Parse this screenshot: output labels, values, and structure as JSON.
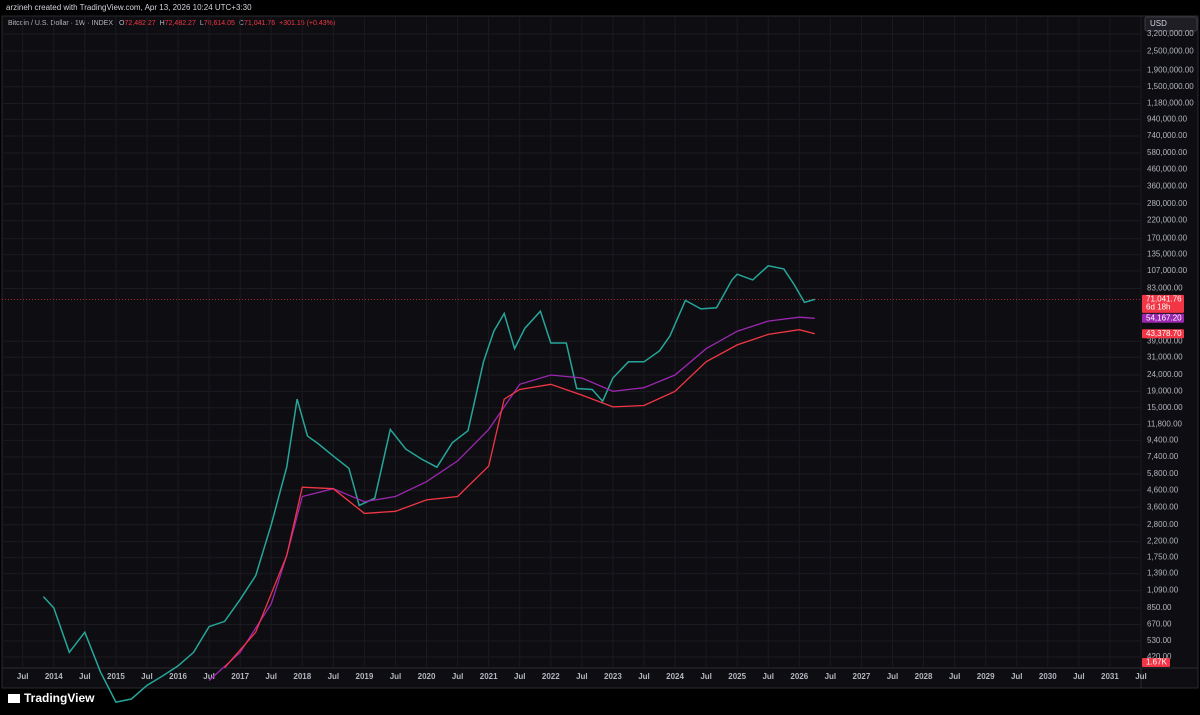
{
  "credit": "arzineh created with TradingView.com, Apr 13, 2026 10:24 UTC+3:30",
  "brand": "TradingView",
  "chart_data": {
    "type": "line",
    "title": "Bitcoin / U.S. Dollar · 1W · INDEX",
    "ohlc": [
      {
        "key": "O",
        "text": "72,482.27"
      },
      {
        "key": "H",
        "text": "72,482.27"
      },
      {
        "key": "L",
        "text": "70,614.05"
      },
      {
        "key": "C",
        "text": "71,041.76"
      }
    ],
    "change": "+301.15 (+0.43%)",
    "currency": "USD",
    "countdown": "6d 18h",
    "volume_label": "1.67K",
    "log_scale": true,
    "grid": true,
    "xlim": [
      "2013-03",
      "2031-07"
    ],
    "ylim": [
      359,
      4140000
    ],
    "xticks": [
      {
        "value": "2013-07",
        "label": "Jul"
      },
      {
        "value": "2014-01",
        "label": "2014"
      },
      {
        "value": "2014-07",
        "label": "Jul"
      },
      {
        "value": "2015-01",
        "label": "2015"
      },
      {
        "value": "2015-07",
        "label": "Jul"
      },
      {
        "value": "2016-01",
        "label": "2016"
      },
      {
        "value": "2016-07",
        "label": "Jul"
      },
      {
        "value": "2017-01",
        "label": "2017"
      },
      {
        "value": "2017-07",
        "label": "Jul"
      },
      {
        "value": "2018-01",
        "label": "2018"
      },
      {
        "value": "2018-07",
        "label": "Jul"
      },
      {
        "value": "2019-01",
        "label": "2019"
      },
      {
        "value": "2019-07",
        "label": "Jul"
      },
      {
        "value": "2020-01",
        "label": "2020"
      },
      {
        "value": "2020-07",
        "label": "Jul"
      },
      {
        "value": "2021-01",
        "label": "2021"
      },
      {
        "value": "2021-07",
        "label": "Jul"
      },
      {
        "value": "2022-01",
        "label": "2022"
      },
      {
        "value": "2022-07",
        "label": "Jul"
      },
      {
        "value": "2023-01",
        "label": "2023"
      },
      {
        "value": "2023-07",
        "label": "Jul"
      },
      {
        "value": "2024-01",
        "label": "2024"
      },
      {
        "value": "2024-07",
        "label": "Jul"
      },
      {
        "value": "2025-01",
        "label": "2025"
      },
      {
        "value": "2025-07",
        "label": "Jul"
      },
      {
        "value": "2026-01",
        "label": "2026"
      },
      {
        "value": "2026-07",
        "label": "Jul"
      },
      {
        "value": "2027-01",
        "label": "2027"
      },
      {
        "value": "2027-07",
        "label": "Jul"
      },
      {
        "value": "2028-01",
        "label": "2028"
      },
      {
        "value": "2028-07",
        "label": "Jul"
      },
      {
        "value": "2029-01",
        "label": "2029"
      },
      {
        "value": "2029-07",
        "label": "Jul"
      },
      {
        "value": "2030-01",
        "label": "2030"
      },
      {
        "value": "2030-07",
        "label": "Jul"
      },
      {
        "value": "2031-01",
        "label": "2031"
      },
      {
        "value": "2031-07",
        "label": "Jul"
      }
    ],
    "yticks": [
      {
        "value": 3200000,
        "label": "3,200,000.00"
      },
      {
        "value": 2500000,
        "label": "2,500,000.00"
      },
      {
        "value": 1900000,
        "label": "1,900,000.00"
      },
      {
        "value": 1500000,
        "label": "1,500,000.00"
      },
      {
        "value": 1180000,
        "label": "1,180,000.00"
      },
      {
        "value": 940000,
        "label": "940,000.00"
      },
      {
        "value": 740000,
        "label": "740,000.00"
      },
      {
        "value": 580000,
        "label": "580,000.00"
      },
      {
        "value": 460000,
        "label": "460,000.00"
      },
      {
        "value": 360000,
        "label": "360,000.00"
      },
      {
        "value": 280000,
        "label": "280,000.00"
      },
      {
        "value": 220000,
        "label": "220,000.00"
      },
      {
        "value": 170000,
        "label": "170,000.00"
      },
      {
        "value": 135000,
        "label": "135,000.00"
      },
      {
        "value": 107000,
        "label": "107,000.00"
      },
      {
        "value": 83000,
        "label": "83,000.00"
      },
      {
        "value": 39000,
        "label": "39,000.00"
      },
      {
        "value": 31000,
        "label": "31,000.00"
      },
      {
        "value": 24000,
        "label": "24,000.00"
      },
      {
        "value": 19000,
        "label": "19,000.00"
      },
      {
        "value": 15000,
        "label": "15,000.00"
      },
      {
        "value": 11800,
        "label": "11,800.00"
      },
      {
        "value": 9400,
        "label": "9,400.00"
      },
      {
        "value": 7400,
        "label": "7,400.00"
      },
      {
        "value": 5800,
        "label": "5,800.00"
      },
      {
        "value": 4600,
        "label": "4,600.00"
      },
      {
        "value": 3600,
        "label": "3,600.00"
      },
      {
        "value": 2800,
        "label": "2,800.00"
      },
      {
        "value": 2200,
        "label": "2,200.00"
      },
      {
        "value": 1750,
        "label": "1,750.00"
      },
      {
        "value": 1390,
        "label": "1,390.00"
      },
      {
        "value": 1090,
        "label": "1,090.00"
      },
      {
        "value": 850,
        "label": "850.00"
      },
      {
        "value": 670,
        "label": "670.00"
      },
      {
        "value": 530,
        "label": "530.00"
      },
      {
        "value": 420,
        "label": "420.00"
      }
    ],
    "series": [
      {
        "color": "#26a69a",
        "label_color": "#f23645",
        "last_label": "71,041.76",
        "price_line": true,
        "x": [
          "2013-11",
          "2014-01",
          "2014-04",
          "2014-07",
          "2014-10",
          "2015-01",
          "2015-04",
          "2015-07",
          "2015-10",
          "2016-01",
          "2016-04",
          "2016-07",
          "2016-10",
          "2017-01",
          "2017-04",
          "2017-07",
          "2017-10",
          "2017-12",
          "2018-02",
          "2018-04",
          "2018-07",
          "2018-10",
          "2018-12",
          "2019-03",
          "2019-06",
          "2019-09",
          "2019-12",
          "2020-03",
          "2020-06",
          "2020-09",
          "2020-12",
          "2021-02",
          "2021-04",
          "2021-06",
          "2021-08",
          "2021-11",
          "2022-01",
          "2022-04",
          "2022-06",
          "2022-09",
          "2022-11",
          "2023-01",
          "2023-04",
          "2023-07",
          "2023-10",
          "2023-12",
          "2024-03",
          "2024-06",
          "2024-09",
          "2024-12",
          "2025-01",
          "2025-04",
          "2025-07",
          "2025-10",
          "2025-12",
          "2026-02",
          "2026-04"
        ],
        "values": [
          1000,
          850,
          450,
          600,
          340,
          220,
          230,
          280,
          320,
          370,
          450,
          650,
          700,
          960,
          1350,
          2800,
          6400,
          17000,
          10000,
          9000,
          7500,
          6300,
          3700,
          4100,
          11000,
          8300,
          7200,
          6400,
          9100,
          10800,
          29000,
          45000,
          58000,
          35000,
          47000,
          60000,
          38000,
          38000,
          19800,
          19500,
          16500,
          23000,
          29000,
          29000,
          34000,
          42000,
          70000,
          62000,
          63000,
          94000,
          102000,
          94000,
          115000,
          110000,
          88000,
          68000,
          71041.76
        ]
      },
      {
        "color": "#9c27b0",
        "label_color": "#9c27b0",
        "last_label": "54,167.20",
        "x": [
          "2016-07",
          "2017-01",
          "2017-07",
          "2017-10",
          "2018-01",
          "2018-07",
          "2019-01",
          "2019-07",
          "2020-01",
          "2020-07",
          "2021-01",
          "2021-07",
          "2022-01",
          "2022-07",
          "2023-01",
          "2023-07",
          "2024-01",
          "2024-07",
          "2025-01",
          "2025-07",
          "2026-01",
          "2026-04"
        ],
        "values": [
          300,
          450,
          900,
          1800,
          4200,
          4700,
          3900,
          4200,
          5200,
          7000,
          11000,
          21000,
          24000,
          23000,
          19000,
          20000,
          24000,
          35000,
          45000,
          52000,
          55000,
          54167.2
        ]
      },
      {
        "color": "#f23645",
        "label_color": "#f23645",
        "last_label": "43,378.70",
        "x": [
          "2016-10",
          "2017-04",
          "2017-10",
          "2018-01",
          "2018-07",
          "2019-01",
          "2019-07",
          "2020-01",
          "2020-07",
          "2021-01",
          "2021-04",
          "2021-07",
          "2022-01",
          "2022-07",
          "2023-01",
          "2023-07",
          "2024-01",
          "2024-07",
          "2025-01",
          "2025-07",
          "2026-01",
          "2026-04"
        ],
        "values": [
          360,
          600,
          1800,
          4800,
          4700,
          3300,
          3400,
          4000,
          4200,
          6500,
          17000,
          19500,
          21000,
          18000,
          15200,
          15500,
          19000,
          29000,
          37000,
          43000,
          46000,
          43378.7
        ]
      }
    ]
  }
}
